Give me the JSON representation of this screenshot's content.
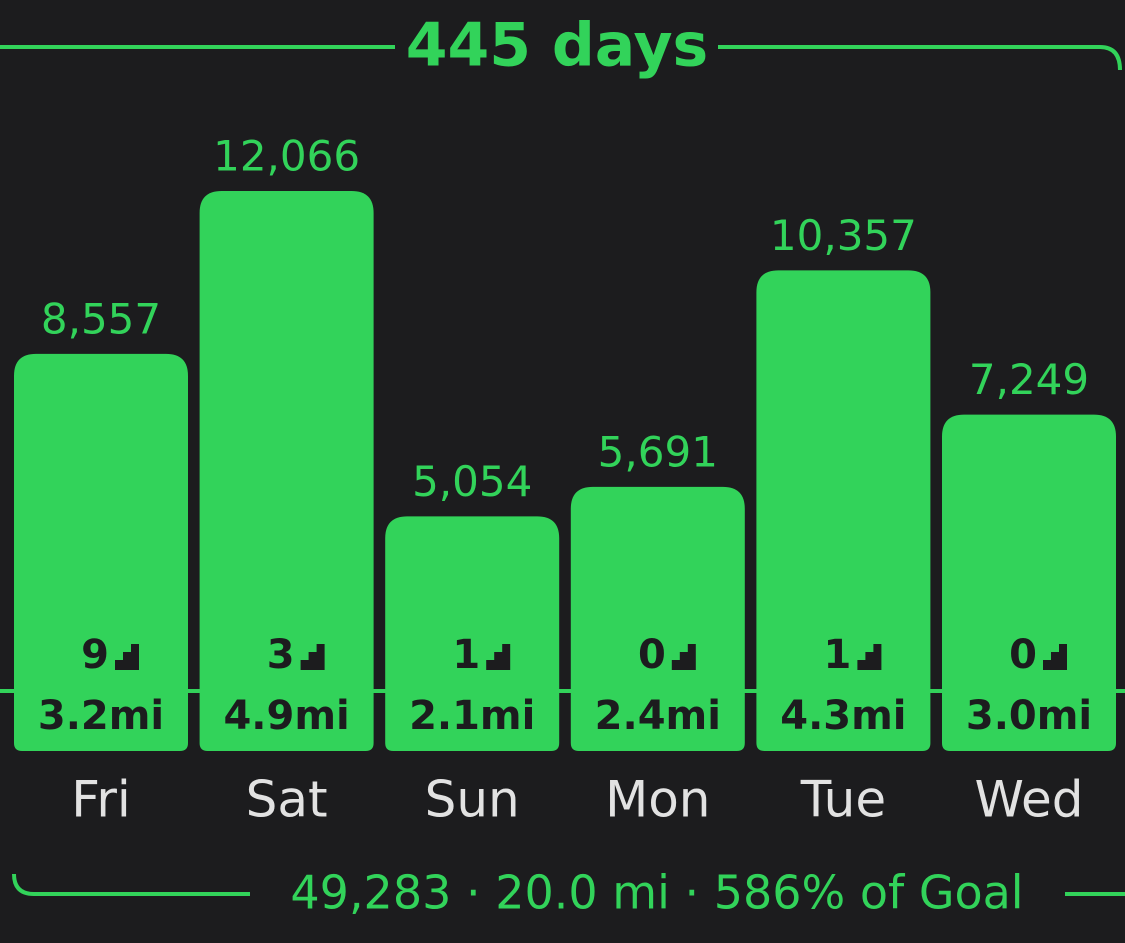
{
  "chart_data": {
    "type": "bar",
    "title": "445 days",
    "categories": [
      "Fri",
      "Sat",
      "Sun",
      "Mon",
      "Tue",
      "Wed"
    ],
    "values": [
      8557,
      12066,
      5054,
      5691,
      10357,
      7249
    ],
    "value_labels": [
      "8,557",
      "12,066",
      "5,054",
      "5,691",
      "10,357",
      "7,249"
    ],
    "flights": [
      9,
      3,
      1,
      0,
      1,
      0
    ],
    "distance": {
      "values": [
        3.2,
        4.9,
        2.1,
        2.4,
        4.3,
        3.0
      ],
      "value_labels": [
        "3.2mi",
        "4.9mi",
        "2.1mi",
        "2.4mi",
        "4.3mi",
        "3.0mi"
      ]
    },
    "footer": "49,283 · 20.0 mi · 586% of Goal",
    "color": "#32d35a"
  }
}
